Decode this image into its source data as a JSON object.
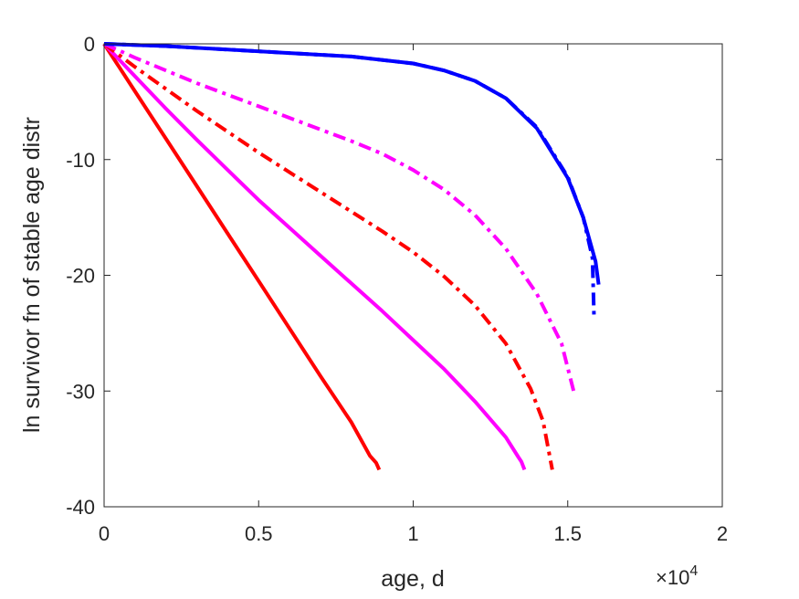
{
  "chart_data": {
    "type": "line",
    "title": "",
    "xlabel": "age, d",
    "ylabel": "ln survivor fn of stable age distr",
    "x_multiplier_label": {
      "base": "×10",
      "exponent": "4"
    },
    "xlim": [
      0,
      20000
    ],
    "ylim": [
      -40,
      0
    ],
    "xticks": [
      0,
      5000,
      10000,
      15000,
      20000
    ],
    "xtick_labels": [
      "0",
      "0.5",
      "1",
      "1.5",
      "2"
    ],
    "yticks": [
      0,
      -10,
      -20,
      -30,
      -40
    ],
    "ytick_labels": [
      "0",
      "-10",
      "-20",
      "-30",
      "-40"
    ],
    "grid": false,
    "legend": "none",
    "series": [
      {
        "color": "#ff0000",
        "style": "solid",
        "points": [
          [
            0,
            0
          ],
          [
            1000,
            -4.1
          ],
          [
            2000,
            -8.2
          ],
          [
            3000,
            -12.3
          ],
          [
            4000,
            -16.4
          ],
          [
            5000,
            -20.5
          ],
          [
            6000,
            -24.6
          ],
          [
            7000,
            -28.7
          ],
          [
            8000,
            -32.7
          ],
          [
            8600,
            -35.6
          ],
          [
            8800,
            -36.2
          ],
          [
            8900,
            -36.8
          ]
        ]
      },
      {
        "color": "#ff00ff",
        "style": "solid",
        "points": [
          [
            0,
            0
          ],
          [
            1000,
            -2.8
          ],
          [
            2000,
            -5.6
          ],
          [
            3000,
            -8.3
          ],
          [
            4000,
            -10.9
          ],
          [
            5000,
            -13.5
          ],
          [
            6000,
            -15.9
          ],
          [
            7000,
            -18.3
          ],
          [
            8000,
            -20.7
          ],
          [
            9000,
            -23.1
          ],
          [
            10000,
            -25.6
          ],
          [
            11000,
            -28.1
          ],
          [
            12000,
            -30.9
          ],
          [
            13000,
            -34.0
          ],
          [
            13400,
            -35.7
          ],
          [
            13500,
            -36.1
          ],
          [
            13600,
            -36.8
          ]
        ]
      },
      {
        "color": "#ff0000",
        "style": "dashdot",
        "points": [
          [
            0,
            0
          ],
          [
            1000,
            -2.0
          ],
          [
            2000,
            -3.9
          ],
          [
            3000,
            -5.8
          ],
          [
            4000,
            -7.6
          ],
          [
            5000,
            -9.4
          ],
          [
            6000,
            -11.1
          ],
          [
            7000,
            -12.8
          ],
          [
            8000,
            -14.5
          ],
          [
            9000,
            -16.2
          ],
          [
            10000,
            -18.0
          ],
          [
            11000,
            -20.1
          ],
          [
            12000,
            -22.6
          ],
          [
            13000,
            -25.9
          ],
          [
            13800,
            -29.8
          ],
          [
            14200,
            -32.6
          ],
          [
            14500,
            -36.8
          ]
        ]
      },
      {
        "color": "#ff00ff",
        "style": "dashdot",
        "points": [
          [
            0,
            0
          ],
          [
            1000,
            -1.2
          ],
          [
            2000,
            -2.3
          ],
          [
            3000,
            -3.4
          ],
          [
            4000,
            -4.4
          ],
          [
            5000,
            -5.4
          ],
          [
            6000,
            -6.4
          ],
          [
            7000,
            -7.4
          ],
          [
            8000,
            -8.4
          ],
          [
            9000,
            -9.5
          ],
          [
            10000,
            -10.9
          ],
          [
            11000,
            -12.6
          ],
          [
            12000,
            -14.8
          ],
          [
            13000,
            -17.7
          ],
          [
            14000,
            -21.6
          ],
          [
            14800,
            -25.9
          ],
          [
            15200,
            -30.1
          ]
        ]
      },
      {
        "color": "#0000ff",
        "style": "dashdot",
        "points": [
          [
            0,
            0
          ],
          [
            2000,
            -0.2
          ],
          [
            4000,
            -0.5
          ],
          [
            6000,
            -0.8
          ],
          [
            8000,
            -1.1
          ],
          [
            10000,
            -1.7
          ],
          [
            11000,
            -2.3
          ],
          [
            12000,
            -3.2
          ],
          [
            13000,
            -4.7
          ],
          [
            14000,
            -7.2
          ],
          [
            15000,
            -11.5
          ],
          [
            15500,
            -15.0
          ],
          [
            15800,
            -18.5
          ],
          [
            15850,
            -23.5
          ]
        ]
      },
      {
        "color": "#0000ff",
        "style": "solid",
        "points": [
          [
            0,
            0
          ],
          [
            2000,
            -0.2
          ],
          [
            4000,
            -0.5
          ],
          [
            6000,
            -0.8
          ],
          [
            8000,
            -1.1
          ],
          [
            10000,
            -1.7
          ],
          [
            11000,
            -2.3
          ],
          [
            12000,
            -3.2
          ],
          [
            13000,
            -4.7
          ],
          [
            14000,
            -7.3
          ],
          [
            15000,
            -11.6
          ],
          [
            15500,
            -15.0
          ],
          [
            15900,
            -18.8
          ],
          [
            16000,
            -20.8
          ]
        ]
      }
    ]
  }
}
